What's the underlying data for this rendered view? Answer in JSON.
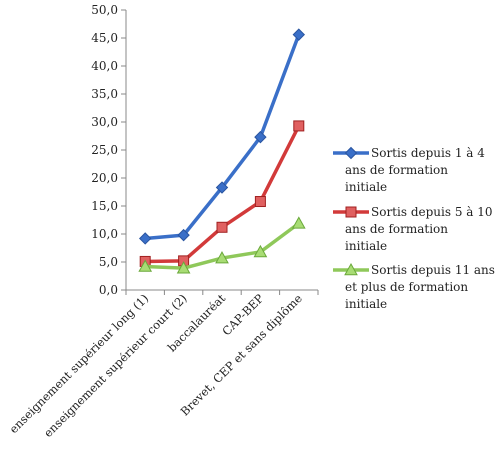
{
  "chart_data": {
    "type": "line",
    "title": "",
    "xlabel": "",
    "ylabel": "",
    "categories": [
      "enseignement supérieur long (1)",
      "enseignement supérieur court (2)",
      "baccalauréat",
      "CAP-BEP",
      "Brevet, CEP et sans diplôme"
    ],
    "y_ticks": [
      "0,0",
      "5,0",
      "10,0",
      "15,0",
      "20,0",
      "25,0",
      "30,0",
      "35,0",
      "40,0",
      "45,0",
      "50,0"
    ],
    "ylim": [
      0,
      50
    ],
    "grid": false,
    "legend_position": "right",
    "series": [
      {
        "name": "Sortis depuis 1 à 4 ans de formation initiale",
        "legend_lines": [
          "Sortis depuis 1 à 4",
          "ans de formation",
          "initiale"
        ],
        "values": [
          9.2,
          9.8,
          18.3,
          27.3,
          45.6
        ],
        "color": "#3a6fc8",
        "marker": "diamond"
      },
      {
        "name": "Sortis depuis 5 à 10 ans de formation initiale",
        "legend_lines": [
          "Sortis depuis 5 à 10",
          "ans  de formation",
          "initiale"
        ],
        "values": [
          5.1,
          5.2,
          11.2,
          15.8,
          29.3
        ],
        "color": "#d23a3a",
        "marker": "square"
      },
      {
        "name": "Sortis depuis 11 ans et plus de formation initiale",
        "legend_lines": [
          "Sortis depuis 11 ans",
          "et plus de formation",
          "initiale"
        ],
        "values": [
          4.2,
          3.9,
          5.7,
          6.8,
          11.9
        ],
        "color": "#8fc85a",
        "marker": "triangle"
      }
    ]
  }
}
